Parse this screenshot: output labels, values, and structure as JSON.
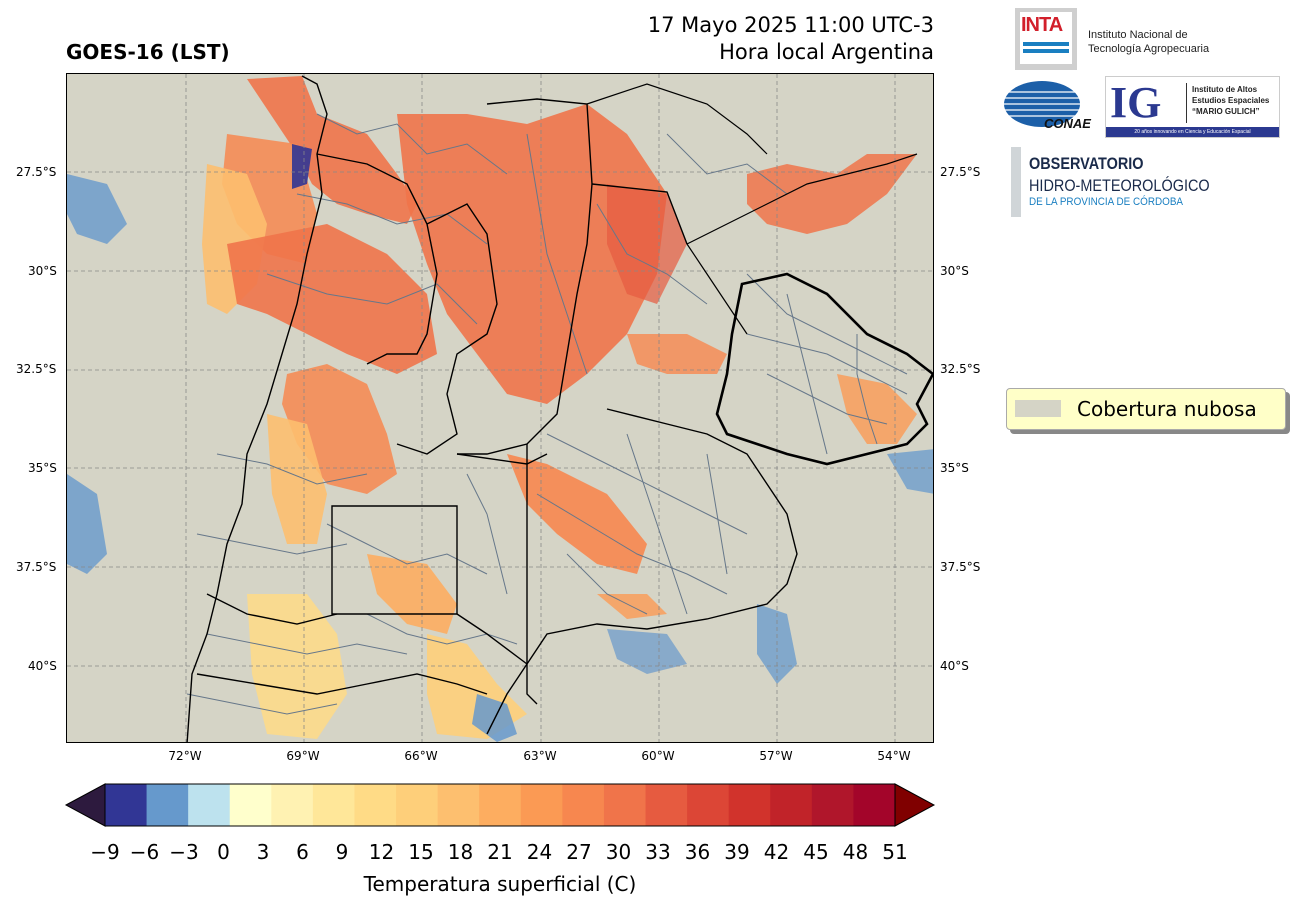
{
  "header": {
    "title": "GOES-16 (LST)",
    "datetime": "17 Mayo 2025 11:00 UTC-3",
    "subtitle": "Hora local Argentina"
  },
  "map": {
    "background_color": "#d5d4c6",
    "lat_labels": [
      "27.5°S",
      "30°S",
      "32.5°S",
      "35°S",
      "37.5°S",
      "40°S"
    ],
    "lon_labels": [
      "72°W",
      "69°W",
      "66°W",
      "63°W",
      "60°W",
      "57°W",
      "54°W"
    ]
  },
  "legend": {
    "label": "Cobertura nubosa",
    "swatch_color": "#d5d4c6",
    "box_color": "#ffffc8"
  },
  "colorbar": {
    "label": "Temperatura superficial (C)",
    "ticks": [
      "−9",
      "−6",
      "−3",
      "0",
      "3",
      "6",
      "9",
      "12",
      "15",
      "18",
      "21",
      "24",
      "27",
      "30",
      "33",
      "36",
      "39",
      "42",
      "45",
      "48",
      "51"
    ],
    "under_color": "#2d1a3e",
    "over_color": "#800000",
    "colors": [
      "#313695",
      "#6699cc",
      "#bde2ee",
      "#ffffcc",
      "#fff2b2",
      "#ffe799",
      "#ffdb86",
      "#fecf7a",
      "#fdbf6f",
      "#fdad60",
      "#fb9a54",
      "#f7874f",
      "#f0744a",
      "#e65b40",
      "#dc4636",
      "#d1332c",
      "#c12329",
      "#b0162b",
      "#a3052a"
    ]
  },
  "logos": {
    "inta": {
      "mark": "INTA",
      "line1": "Instituto Nacional de",
      "line2": "Tecnología Agropecuaria"
    },
    "conae": {
      "mark": "CONAE"
    },
    "ig": {
      "mark": "IG",
      "line1": "Instituto de Altos",
      "line2": "Estudios Espaciales",
      "line3": "“MARIO GULICH”",
      "tagline": "20 años innovando en Ciencia y Educación Espacial"
    },
    "ohm": {
      "line1": "OBSERVATORIO",
      "line2": "HIDRO-METEOROLÓGICO",
      "line3": "DE LA PROVINCIA DE CÓRDOBA"
    }
  }
}
